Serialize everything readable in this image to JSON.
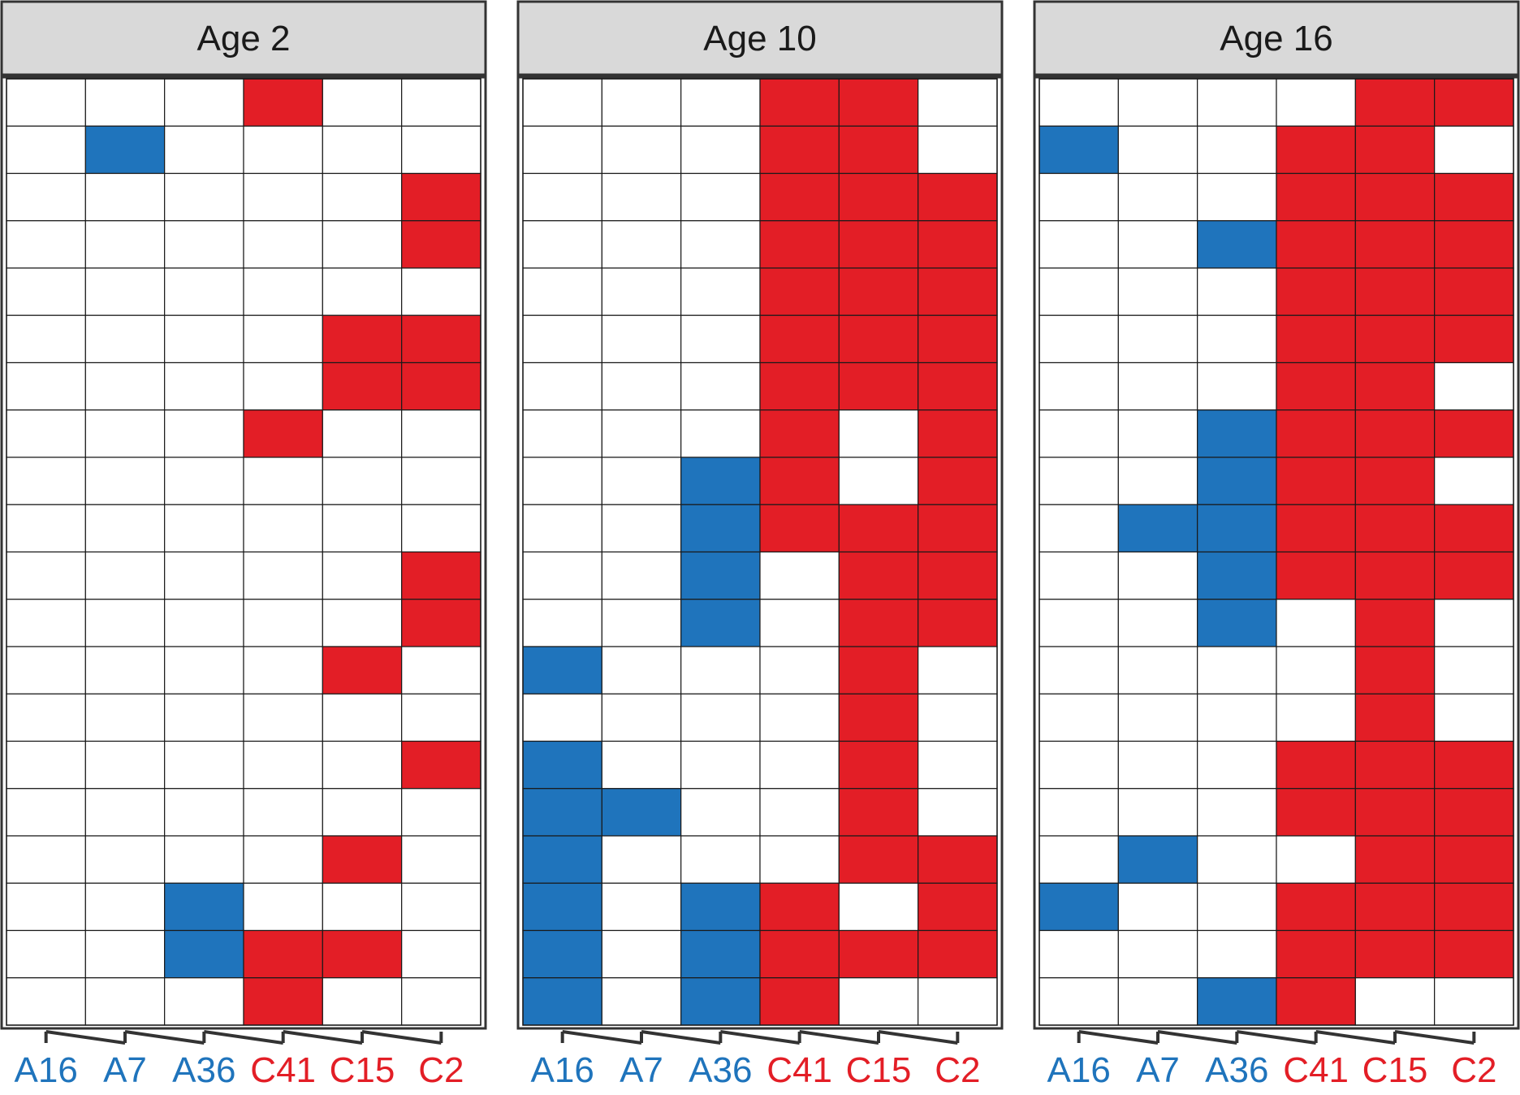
{
  "chart_data": {
    "type": "heatmap",
    "colors": {
      "A": "#1f74bc",
      "C": "#e31e26",
      "empty": "#ffffff",
      "strip": "#d9d9d9",
      "grid": "#1a1a1a"
    },
    "columns": [
      {
        "label": "A16",
        "group": "A"
      },
      {
        "label": "A7",
        "group": "A"
      },
      {
        "label": "A36",
        "group": "A"
      },
      {
        "label": "C41",
        "group": "C"
      },
      {
        "label": "C15",
        "group": "C"
      },
      {
        "label": "C2",
        "group": "C"
      }
    ],
    "panels": [
      {
        "title": "Age 2",
        "cells": [
          [
            0,
            0,
            0,
            1,
            0,
            0
          ],
          [
            0,
            1,
            0,
            0,
            0,
            0
          ],
          [
            0,
            0,
            0,
            0,
            0,
            1
          ],
          [
            0,
            0,
            0,
            0,
            0,
            1
          ],
          [
            0,
            0,
            0,
            0,
            0,
            0
          ],
          [
            0,
            0,
            0,
            0,
            1,
            1
          ],
          [
            0,
            0,
            0,
            0,
            1,
            1
          ],
          [
            0,
            0,
            0,
            1,
            0,
            0
          ],
          [
            0,
            0,
            0,
            0,
            0,
            0
          ],
          [
            0,
            0,
            0,
            0,
            0,
            0
          ],
          [
            0,
            0,
            0,
            0,
            0,
            1
          ],
          [
            0,
            0,
            0,
            0,
            0,
            1
          ],
          [
            0,
            0,
            0,
            0,
            1,
            0
          ],
          [
            0,
            0,
            0,
            0,
            0,
            0
          ],
          [
            0,
            0,
            0,
            0,
            0,
            1
          ],
          [
            0,
            0,
            0,
            0,
            0,
            0
          ],
          [
            0,
            0,
            0,
            0,
            1,
            0
          ],
          [
            0,
            0,
            1,
            0,
            0,
            0
          ],
          [
            0,
            0,
            1,
            1,
            1,
            0
          ],
          [
            0,
            0,
            0,
            1,
            0,
            0
          ]
        ]
      },
      {
        "title": "Age 10",
        "cells": [
          [
            0,
            0,
            0,
            1,
            1,
            0
          ],
          [
            0,
            0,
            0,
            1,
            1,
            0
          ],
          [
            0,
            0,
            0,
            1,
            1,
            1
          ],
          [
            0,
            0,
            0,
            1,
            1,
            1
          ],
          [
            0,
            0,
            0,
            1,
            1,
            1
          ],
          [
            0,
            0,
            0,
            1,
            1,
            1
          ],
          [
            0,
            0,
            0,
            1,
            1,
            1
          ],
          [
            0,
            0,
            0,
            1,
            0,
            1
          ],
          [
            0,
            0,
            1,
            1,
            0,
            1
          ],
          [
            0,
            0,
            1,
            1,
            1,
            1
          ],
          [
            0,
            0,
            1,
            0,
            1,
            1
          ],
          [
            0,
            0,
            1,
            0,
            1,
            1
          ],
          [
            1,
            0,
            0,
            0,
            1,
            0
          ],
          [
            0,
            0,
            0,
            0,
            1,
            0
          ],
          [
            1,
            0,
            0,
            0,
            1,
            0
          ],
          [
            1,
            1,
            0,
            0,
            1,
            0
          ],
          [
            1,
            0,
            0,
            0,
            1,
            1
          ],
          [
            1,
            0,
            1,
            1,
            0,
            1
          ],
          [
            1,
            0,
            1,
            1,
            1,
            1
          ],
          [
            1,
            0,
            1,
            1,
            0,
            0
          ]
        ]
      },
      {
        "title": "Age 16",
        "cells": [
          [
            0,
            0,
            0,
            0,
            1,
            1
          ],
          [
            1,
            0,
            0,
            1,
            1,
            0
          ],
          [
            0,
            0,
            0,
            1,
            1,
            1
          ],
          [
            0,
            0,
            1,
            1,
            1,
            1
          ],
          [
            0,
            0,
            0,
            1,
            1,
            1
          ],
          [
            0,
            0,
            0,
            1,
            1,
            1
          ],
          [
            0,
            0,
            0,
            1,
            1,
            0
          ],
          [
            0,
            0,
            1,
            1,
            1,
            1
          ],
          [
            0,
            0,
            1,
            1,
            1,
            0
          ],
          [
            0,
            1,
            1,
            1,
            1,
            1
          ],
          [
            0,
            0,
            1,
            1,
            1,
            1
          ],
          [
            0,
            0,
            1,
            0,
            1,
            0
          ],
          [
            0,
            0,
            0,
            0,
            1,
            0
          ],
          [
            0,
            0,
            0,
            0,
            1,
            0
          ],
          [
            0,
            0,
            0,
            1,
            1,
            1
          ],
          [
            0,
            0,
            0,
            1,
            1,
            1
          ],
          [
            0,
            1,
            0,
            0,
            1,
            1
          ],
          [
            1,
            0,
            0,
            1,
            1,
            1
          ],
          [
            0,
            0,
            0,
            1,
            1,
            1
          ],
          [
            0,
            0,
            1,
            1,
            0,
            0
          ]
        ]
      }
    ]
  }
}
